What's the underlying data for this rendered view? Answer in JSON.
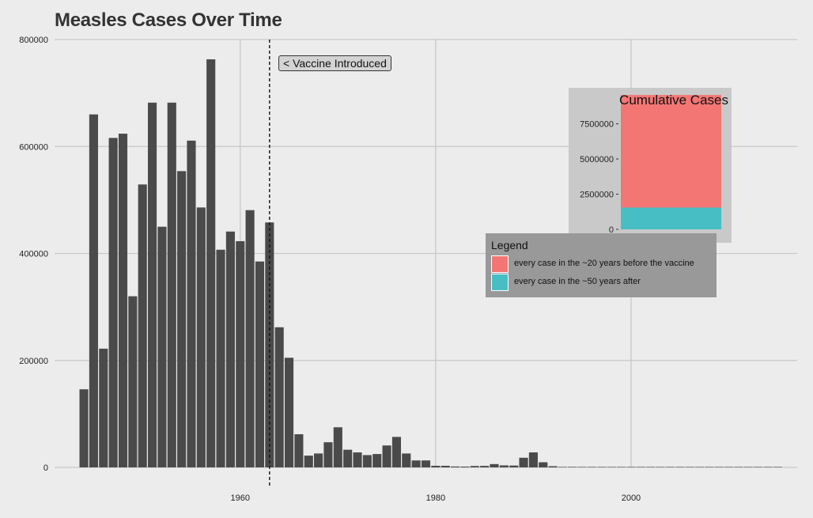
{
  "chart_data": [
    {
      "type": "bar",
      "title": "Measles Cases Over Time",
      "xlabel": "",
      "ylabel": "",
      "x": [
        1944,
        1945,
        1946,
        1947,
        1948,
        1949,
        1950,
        1951,
        1952,
        1953,
        1954,
        1955,
        1956,
        1957,
        1958,
        1959,
        1960,
        1961,
        1962,
        1963,
        1964,
        1965,
        1966,
        1967,
        1968,
        1969,
        1970,
        1971,
        1972,
        1973,
        1974,
        1975,
        1976,
        1977,
        1978,
        1979,
        1980,
        1981,
        1982,
        1983,
        1984,
        1985,
        1986,
        1987,
        1988,
        1989,
        1990,
        1991,
        1992,
        1993,
        1994,
        1995,
        1996,
        1997,
        1998,
        1999,
        2000,
        2001,
        2002,
        2003,
        2004,
        2005,
        2006,
        2007,
        2008,
        2009,
        2010,
        2011,
        2012,
        2013,
        2014,
        2015
      ],
      "values": [
        146000,
        660000,
        222000,
        616000,
        624000,
        320000,
        529000,
        682000,
        450000,
        682000,
        554000,
        611000,
        486000,
        763000,
        407000,
        441000,
        423000,
        481000,
        385000,
        458000,
        262000,
        205000,
        62000,
        22000,
        26000,
        47000,
        75000,
        33000,
        28000,
        23000,
        25000,
        41000,
        57000,
        26000,
        13000,
        13000,
        3000,
        3000,
        1700,
        1500,
        2600,
        2800,
        6200,
        3700,
        3400,
        18000,
        28000,
        9600,
        2200,
        300,
        1000,
        300,
        500,
        140,
        100,
        100,
        90,
        120,
        40,
        60,
        40,
        70,
        60,
        40,
        140,
        70,
        60,
        220,
        55,
        190,
        670,
        190
      ],
      "xticks": [
        "1960",
        "1980",
        "2000"
      ],
      "yticks": [
        "0",
        "200000",
        "400000",
        "600000",
        "800000"
      ],
      "xlim": [
        1941,
        2017
      ],
      "ylim": [
        0,
        800000
      ],
      "grid": true,
      "bar_color": "#4a4a4a",
      "vline": {
        "x": 1963,
        "style": "dashed"
      },
      "annotation": "< Vaccine Introduced"
    },
    {
      "type": "bar",
      "stacked": true,
      "title": "Cumulative Cases",
      "yticks": [
        "0",
        "2500000",
        "5000000",
        "7500000"
      ],
      "ylim": [
        0,
        9500000
      ],
      "series": [
        {
          "name": "every case in the ~50 years after",
          "values": [
            1550000
          ],
          "color": "#46bec4"
        },
        {
          "name": "every case in the ~20 years before the vaccine",
          "values": [
            8000000
          ],
          "color": "#f37674"
        }
      ]
    }
  ],
  "legend": {
    "title": "Legend",
    "items": [
      {
        "label": "every case in the ~20 years before the vaccine",
        "color": "#f37674"
      },
      {
        "label": "every case in the ~50 years after",
        "color": "#46bec4"
      }
    ]
  }
}
